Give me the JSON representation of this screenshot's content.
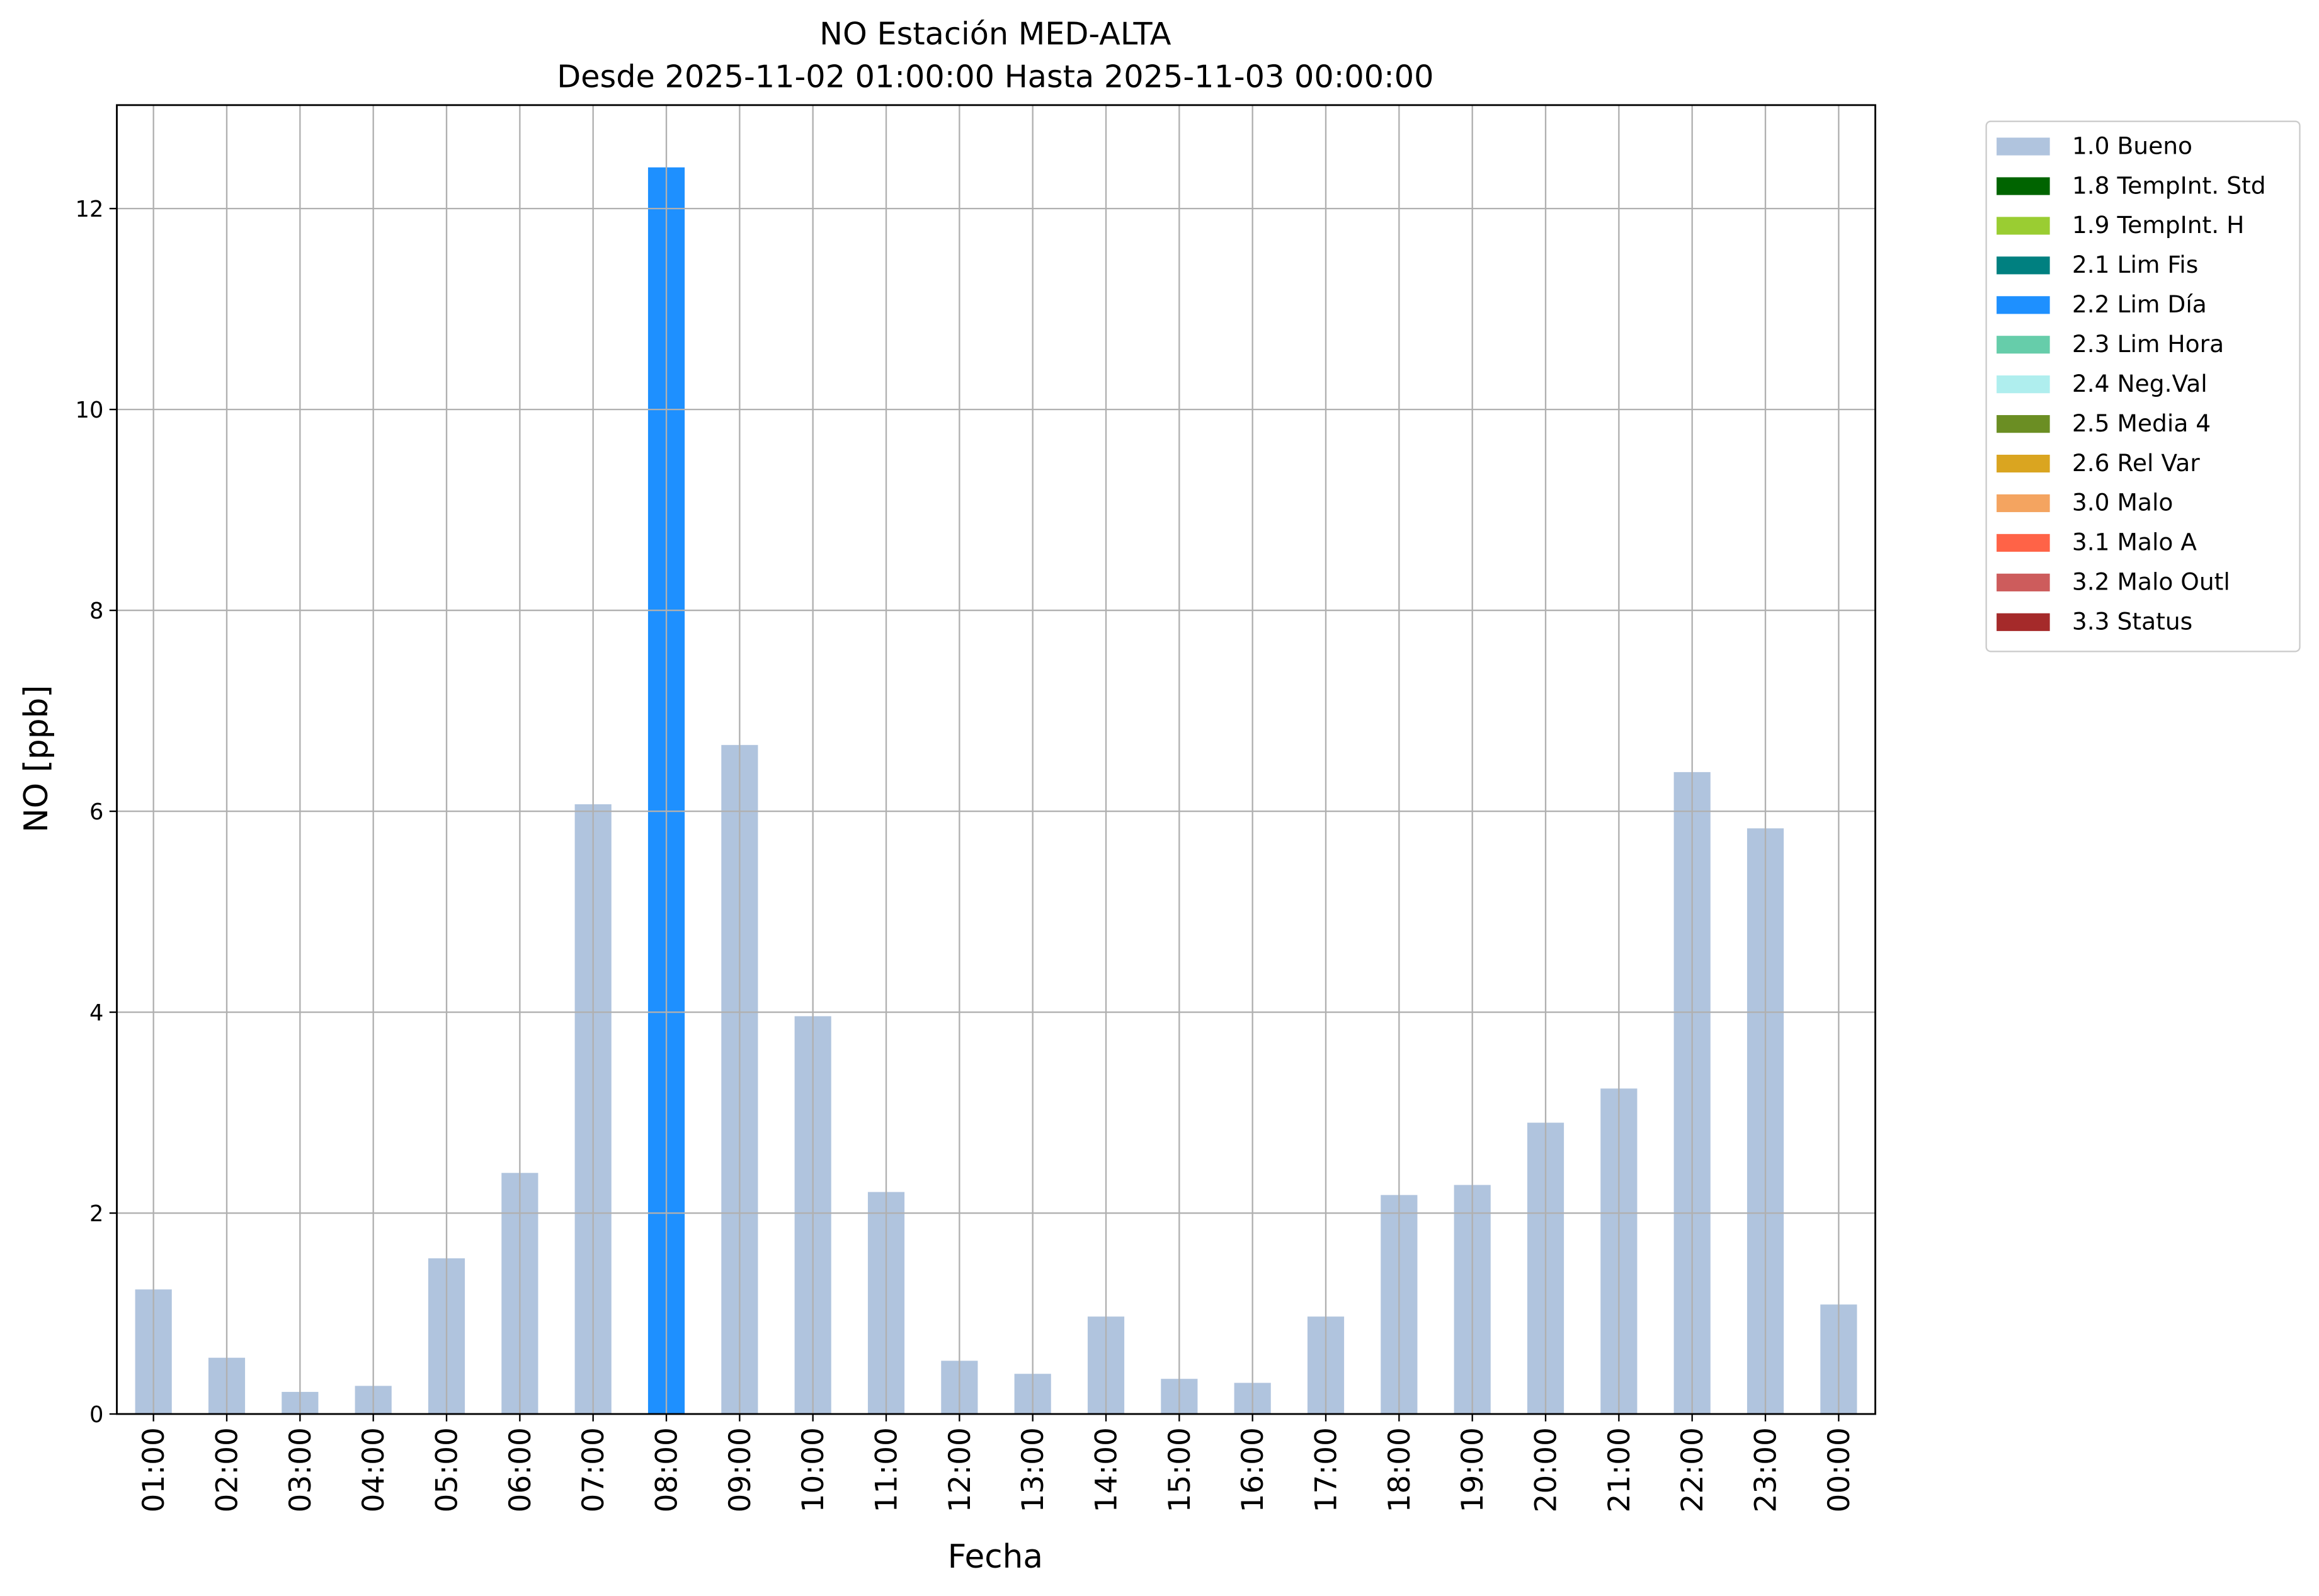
{
  "chart_data": {
    "type": "bar",
    "stacked": true,
    "title": "NO Estación MED-ALTA",
    "subtitle": "Desde 2025-11-02 01:00:00 Hasta 2025-11-03 00:00:00",
    "x_label": "Fecha",
    "y_label": "NO [ppb]",
    "categories": [
      "01:00",
      "02:00",
      "03:00",
      "04:00",
      "05:00",
      "06:00",
      "07:00",
      "08:00",
      "09:00",
      "10:00",
      "11:00",
      "12:00",
      "13:00",
      "14:00",
      "15:00",
      "16:00",
      "17:00",
      "18:00",
      "19:00",
      "20:00",
      "21:00",
      "22:00",
      "23:00",
      "00:00"
    ],
    "series": [
      {
        "name": "1.0 Bueno",
        "color": "#b0c4de",
        "values": [
          1.24,
          0.56,
          0.22,
          0.28,
          1.55,
          2.4,
          6.07,
          null,
          6.66,
          3.96,
          2.21,
          0.53,
          0.4,
          0.97,
          0.35,
          0.31,
          0.97,
          2.18,
          2.28,
          2.9,
          3.24,
          6.39,
          5.83,
          1.09
        ]
      },
      {
        "name": "1.8 TempInt. Std",
        "color": "#006400",
        "values": [
          null,
          null,
          null,
          null,
          null,
          null,
          null,
          null,
          null,
          null,
          null,
          null,
          null,
          null,
          null,
          null,
          null,
          null,
          null,
          null,
          null,
          null,
          null,
          null
        ]
      },
      {
        "name": "1.9 TempInt. H",
        "color": "#9acd32",
        "values": [
          null,
          null,
          null,
          null,
          null,
          null,
          null,
          null,
          null,
          null,
          null,
          null,
          null,
          null,
          null,
          null,
          null,
          null,
          null,
          null,
          null,
          null,
          null,
          null
        ]
      },
      {
        "name": "2.1 Lim Fis",
        "color": "#008080",
        "values": [
          null,
          null,
          null,
          null,
          null,
          null,
          null,
          null,
          null,
          null,
          null,
          null,
          null,
          null,
          null,
          null,
          null,
          null,
          null,
          null,
          null,
          null,
          null,
          null
        ]
      },
      {
        "name": "2.2 Lim Día",
        "color": "#1e90ff",
        "values": [
          null,
          null,
          null,
          null,
          null,
          null,
          null,
          12.41,
          null,
          null,
          null,
          null,
          null,
          null,
          null,
          null,
          null,
          null,
          null,
          null,
          null,
          null,
          null,
          null
        ]
      },
      {
        "name": "2.3 Lim Hora",
        "color": "#66cdaa",
        "values": [
          null,
          null,
          null,
          null,
          null,
          null,
          null,
          null,
          null,
          null,
          null,
          null,
          null,
          null,
          null,
          null,
          null,
          null,
          null,
          null,
          null,
          null,
          null,
          null
        ]
      },
      {
        "name": "2.4 Neg.Val",
        "color": "#afeeee",
        "values": [
          null,
          null,
          null,
          null,
          null,
          null,
          null,
          null,
          null,
          null,
          null,
          null,
          null,
          null,
          null,
          null,
          null,
          null,
          null,
          null,
          null,
          null,
          null,
          null
        ]
      },
      {
        "name": "2.5 Media 4",
        "color": "#6b8e23",
        "values": [
          null,
          null,
          null,
          null,
          null,
          null,
          null,
          null,
          null,
          null,
          null,
          null,
          null,
          null,
          null,
          null,
          null,
          null,
          null,
          null,
          null,
          null,
          null,
          null
        ]
      },
      {
        "name": "2.6 Rel Var",
        "color": "#daa520",
        "values": [
          null,
          null,
          null,
          null,
          null,
          null,
          null,
          null,
          null,
          null,
          null,
          null,
          null,
          null,
          null,
          null,
          null,
          null,
          null,
          null,
          null,
          null,
          null,
          null
        ]
      },
      {
        "name": "3.0 Malo",
        "color": "#f4a460",
        "values": [
          null,
          null,
          null,
          null,
          null,
          null,
          null,
          null,
          null,
          null,
          null,
          null,
          null,
          null,
          null,
          null,
          null,
          null,
          null,
          null,
          null,
          null,
          null,
          null
        ]
      },
      {
        "name": "3.1 Malo A",
        "color": "#ff6347",
        "values": [
          null,
          null,
          null,
          null,
          null,
          null,
          null,
          null,
          null,
          null,
          null,
          null,
          null,
          null,
          null,
          null,
          null,
          null,
          null,
          null,
          null,
          null,
          null,
          null
        ]
      },
      {
        "name": "3.2 Malo Outl",
        "color": "#cd5c5c",
        "values": [
          null,
          null,
          null,
          null,
          null,
          null,
          null,
          null,
          null,
          null,
          null,
          null,
          null,
          null,
          null,
          null,
          null,
          null,
          null,
          null,
          null,
          null,
          null,
          null
        ]
      },
      {
        "name": "3.3 Status",
        "color": "#a52a2a",
        "values": [
          null,
          null,
          null,
          null,
          null,
          null,
          null,
          null,
          null,
          null,
          null,
          null,
          null,
          null,
          null,
          null,
          null,
          null,
          null,
          null,
          null,
          null,
          null,
          null
        ]
      }
    ],
    "ylim": [
      0,
      13.03
    ],
    "yticks": [
      0,
      2,
      4,
      6,
      8,
      10,
      12
    ],
    "grid": true,
    "legend": "outside-right"
  }
}
